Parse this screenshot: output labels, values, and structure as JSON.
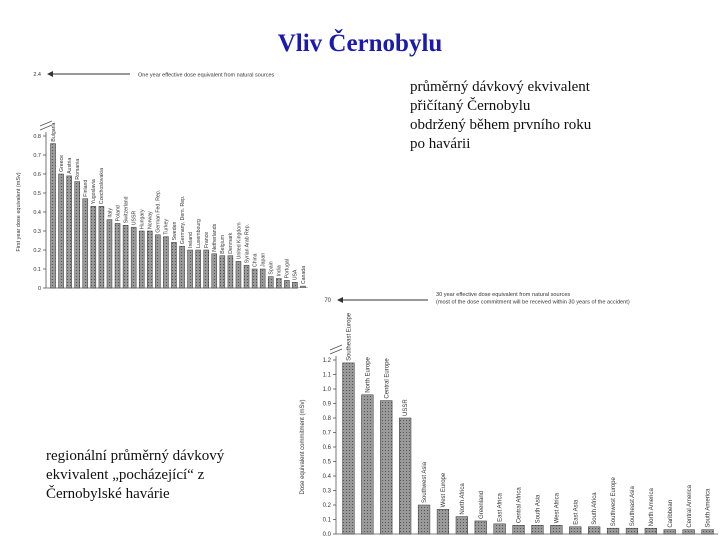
{
  "slide": {
    "title": "Vliv Černobylu",
    "caption_top": "průměrný dávkový ekvivalent\npřičítaný Černobylu\nobdržený během prvního roku\npo havárii",
    "caption_bottom": "regionální průměrný dávkový\nekvivalent „pocházející“ z\nČernobylské havárie"
  },
  "chart_data": [
    {
      "type": "bar",
      "ylabel": "First year dose equivalent (mSv)",
      "reference_label": "One year effective dose equivalent from natural sources",
      "reference_value": "2.4",
      "yticks": [
        "0.8",
        "0.7",
        "0.6",
        "0.5",
        "0.4",
        "0.3",
        "0.2",
        "0.1",
        "0"
      ],
      "ylim": [
        0,
        0.8
      ],
      "categories": [
        "Bulgaria",
        "Greece",
        "Austria",
        "Romania",
        "Finland",
        "Yugoslavia",
        "Czechoslovakia",
        "Italy",
        "Poland",
        "Switzerland",
        "USSR",
        "Hungary",
        "Norway",
        "German Fed. Rep.",
        "Turkey",
        "Sweden",
        "Germany, Dem. Rep.",
        "Ireland",
        "Luxembourg",
        "France",
        "Netherlands",
        "Belgium",
        "Denmark",
        "United Kingdom",
        "Syrian Arab Rep.",
        "China",
        "Japan",
        "Spain",
        "India",
        "Portugal",
        "USA",
        "Canada"
      ],
      "values": [
        0.76,
        0.6,
        0.59,
        0.56,
        0.47,
        0.43,
        0.43,
        0.36,
        0.34,
        0.33,
        0.32,
        0.3,
        0.3,
        0.28,
        0.27,
        0.24,
        0.22,
        0.2,
        0.2,
        0.2,
        0.18,
        0.17,
        0.17,
        0.14,
        0.12,
        0.1,
        0.1,
        0.06,
        0.05,
        0.04,
        0.03,
        0.01
      ]
    },
    {
      "type": "bar",
      "ylabel": "Dose equivalent commitment (mSv)",
      "reference_label": "30 year effective dose equivalent from natural sources (most of the dose commitment will be received within 30 years of the accident)",
      "reference_value": "70",
      "yticks": [
        "1.2",
        "1.1",
        "1.0",
        "0.9",
        "0.8",
        "0.7",
        "0.6",
        "0.5",
        "0.4",
        "0.3",
        "0.2",
        "0.1",
        "0.0"
      ],
      "ylim": [
        0,
        1.2
      ],
      "categories": [
        "Southeast Europe",
        "North Europe",
        "Central Europe",
        "USSR",
        "Southwest Asia",
        "West Europe",
        "North Africa",
        "Greenland",
        "East Africa",
        "Central Africa",
        "South Asia",
        "West Africa",
        "East Asia",
        "South Africa",
        "Southwest Europe",
        "Southeast Asia",
        "North America",
        "Caribbean",
        "Central America",
        "South America"
      ],
      "values": [
        1.18,
        0.96,
        0.92,
        0.8,
        0.2,
        0.17,
        0.12,
        0.09,
        0.07,
        0.06,
        0.06,
        0.06,
        0.05,
        0.05,
        0.04,
        0.04,
        0.04,
        0.03,
        0.03,
        0.03
      ]
    }
  ]
}
